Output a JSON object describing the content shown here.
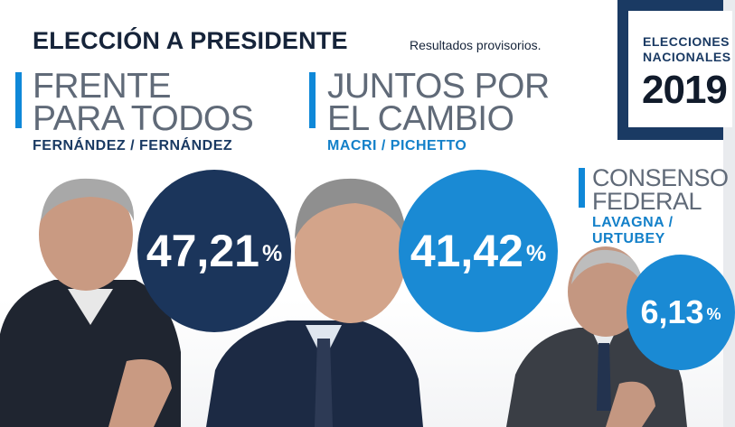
{
  "header": {
    "title": "ELECCIÓN A PRESIDENTE",
    "subtitle": "Resultados provisorios."
  },
  "logo": {
    "line1": "ELECCIONES",
    "line2": "NACIONALES",
    "year": "2019"
  },
  "candidates": [
    {
      "party_line1": "FRENTE",
      "party_line2": "PARA TODOS",
      "names": "FERNÁNDEZ / FERNÁNDEZ",
      "percent": "47,21",
      "symbol": "%"
    },
    {
      "party_line1": "JUNTOS POR",
      "party_line2": "EL CAMBIO",
      "names": "MACRI / PICHETTO",
      "percent": "41,42",
      "symbol": "%"
    },
    {
      "party_line1": "CONSENSO",
      "party_line2": "FEDERAL",
      "names_line1": "LAVAGNA /",
      "names_line2": "URTUBEY",
      "percent": "6,13",
      "symbol": "%"
    }
  ],
  "colors": {
    "navy": "#1b355b",
    "blue": "#1a8ad4",
    "accent_bar": "#0f88d8"
  }
}
